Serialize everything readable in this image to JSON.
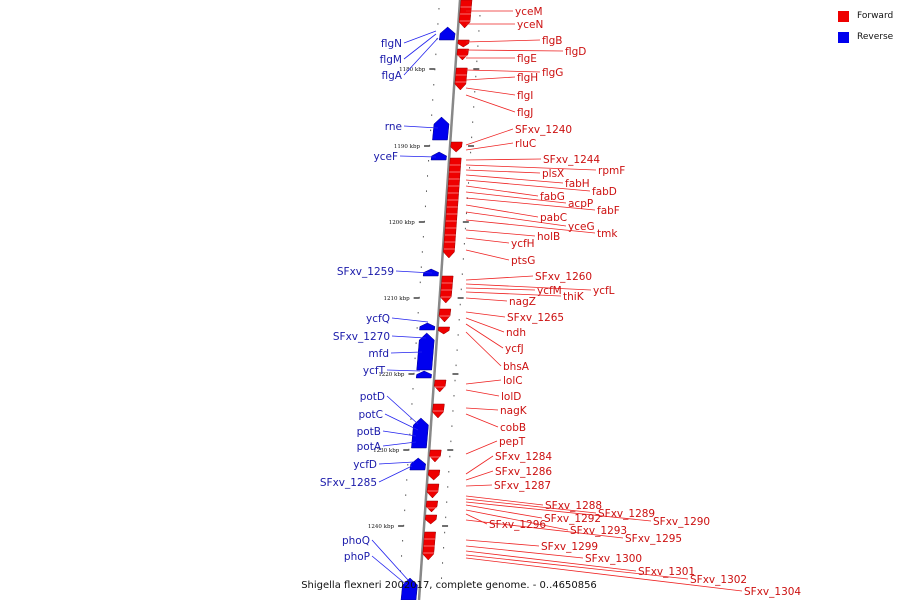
{
  "legend": {
    "forward_label": "Forward",
    "reverse_label": "Reverse",
    "forward_color": "#ee0000",
    "reverse_color": "#0000ee"
  },
  "caption": "Shigella flexneri 2002017, complete genome. - 0..4650856",
  "ticks": [
    "1180 kbp",
    "1190 kbp",
    "1200 kbp",
    "1210 kbp",
    "1220 kbp",
    "1230 kbp",
    "1240 kbp"
  ],
  "genes_forward": [
    "yceM",
    "yceN",
    "flgB",
    "flgD",
    "flgE",
    "flgG",
    "flgH",
    "flgI",
    "flgJ",
    "SFxv_1240",
    "rluC",
    "SFxv_1244",
    "rpmF",
    "plsX",
    "fabH",
    "fabD",
    "fabG",
    "acpP",
    "fabF",
    "pabC",
    "yceG",
    "tmk",
    "holB",
    "ycfH",
    "ptsG",
    "SFxv_1260",
    "ycfL",
    "ycfM",
    "thiK",
    "nagZ",
    "SFxv_1265",
    "ndh",
    "ycfJ",
    "bhsA",
    "lolC",
    "lolD",
    "nagK",
    "cobB",
    "pepT",
    "SFxv_1284",
    "SFxv_1286",
    "SFxv_1287",
    "SFxv_1288",
    "SFxv_1289",
    "SFxv_1290",
    "SFxv_1292",
    "SFxv_1293",
    "SFxv_1296",
    "SFxv_1295",
    "SFxv_1299",
    "SFxv_1300",
    "SFxv_1301",
    "SFxv_1302",
    "SFxv_1304"
  ],
  "genes_reverse": [
    "flgN",
    "flgM",
    "flgA",
    "rne",
    "yceF",
    "SFxv_1259",
    "ycfQ",
    "SFxv_1270",
    "mfd",
    "ycfT",
    "potD",
    "potC",
    "potB",
    "potA",
    "ycfD",
    "SFxv_1285",
    "phoQ",
    "phoP"
  ]
}
